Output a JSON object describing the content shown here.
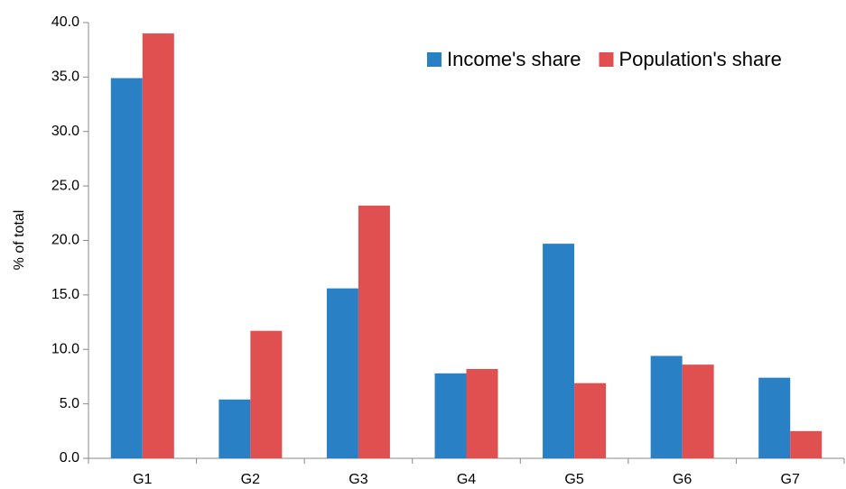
{
  "chart_data": {
    "type": "bar",
    "y_label": "% of total",
    "categories": [
      "G1",
      "G2",
      "G3",
      "G4",
      "G5",
      "G6",
      "G7"
    ],
    "series": [
      {
        "name": "Income's share",
        "color": "#2a80c5",
        "values": [
          34.9,
          5.4,
          15.6,
          7.8,
          19.7,
          9.4,
          7.4
        ]
      },
      {
        "name": "Population's share",
        "color": "#e05050",
        "values": [
          39.0,
          11.7,
          23.2,
          8.2,
          6.9,
          8.6,
          2.5
        ]
      }
    ],
    "ylim": [
      0,
      40
    ],
    "yticks": [
      {
        "value": 0,
        "label": "0.0"
      },
      {
        "value": 5,
        "label": "5.0"
      },
      {
        "value": 10,
        "label": "10.0"
      },
      {
        "value": 15,
        "label": "15.0"
      },
      {
        "value": 20,
        "label": "20.0"
      },
      {
        "value": 25,
        "label": "25.0"
      },
      {
        "value": 30,
        "label": "30.0"
      },
      {
        "value": 35,
        "label": "35.0"
      },
      {
        "value": 40,
        "label": "40.0"
      }
    ],
    "legend_position": "top-right",
    "grid": false
  }
}
